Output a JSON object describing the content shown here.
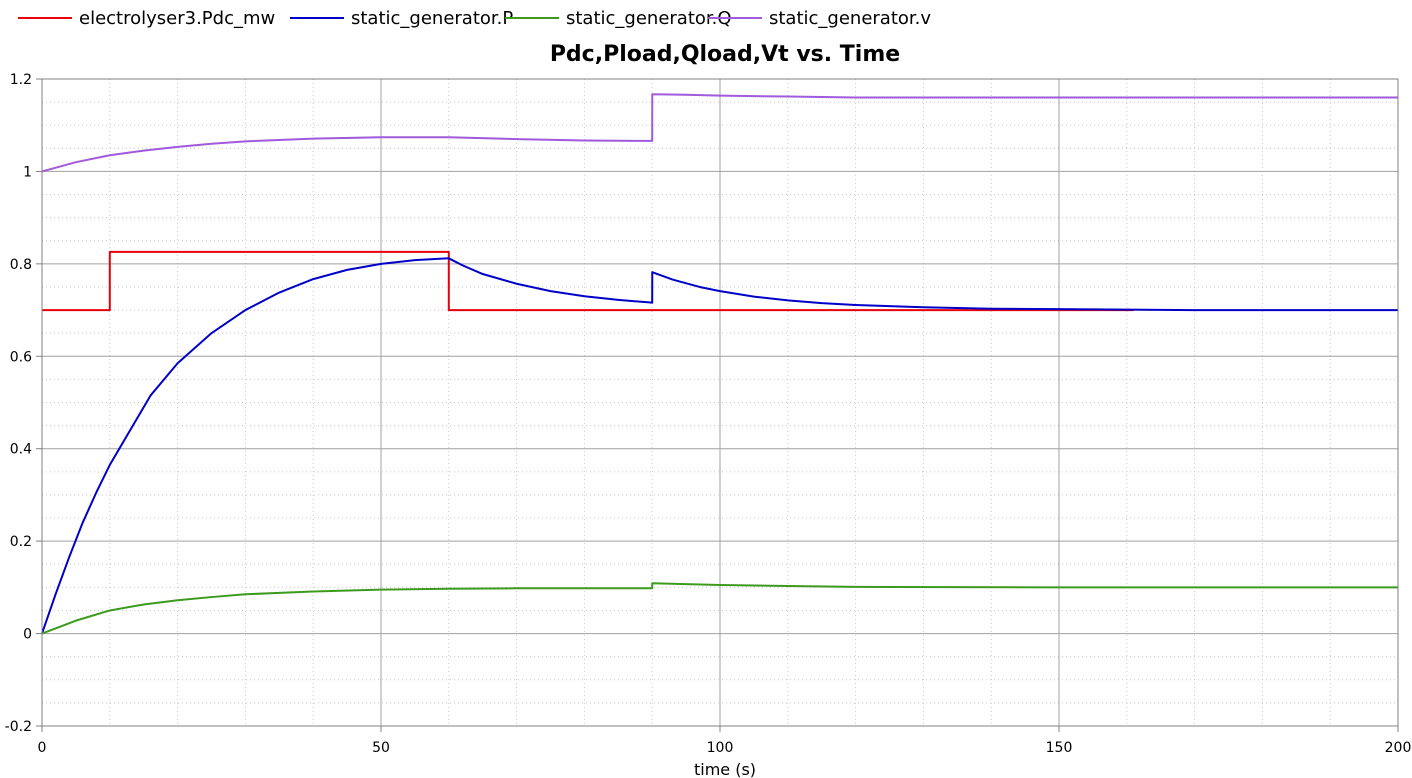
{
  "chart_data": {
    "type": "line",
    "title": "Pdc,Pload,Qload,Vt vs. Time",
    "xlabel": "time (s)",
    "ylabel": "",
    "xlim": [
      0,
      200
    ],
    "ylim": [
      -0.2,
      1.2
    ],
    "x_ticks": [
      "0",
      "50",
      "100",
      "150",
      "200"
    ],
    "y_ticks": [
      "-0.2",
      "0",
      "0.2",
      "0.4",
      "0.6",
      "0.8",
      "1",
      "1.2"
    ],
    "grid": true,
    "legend_position": "top-left",
    "series": [
      {
        "name": "electrolyser3.Pdc_mw",
        "color": "#e8000b",
        "x": [
          0,
          10,
          10,
          60,
          60,
          161
        ],
        "y": [
          0.7,
          0.7,
          0.826,
          0.826,
          0.7,
          0.7
        ]
      },
      {
        "name": "static_generator.P",
        "color": "#0000c8",
        "x": [
          0,
          2,
          4,
          6,
          8,
          10,
          13,
          16,
          20,
          25,
          30,
          35,
          40,
          45,
          50,
          55,
          60,
          62,
          65,
          70,
          75,
          80,
          85,
          90,
          90.01,
          93,
          97,
          100,
          105,
          110,
          115,
          120,
          130,
          140,
          150,
          160,
          170,
          180,
          200
        ],
        "y": [
          0,
          0.085,
          0.165,
          0.24,
          0.305,
          0.365,
          0.44,
          0.515,
          0.585,
          0.65,
          0.7,
          0.738,
          0.767,
          0.787,
          0.8,
          0.808,
          0.812,
          0.797,
          0.778,
          0.757,
          0.741,
          0.73,
          0.722,
          0.716,
          0.782,
          0.766,
          0.75,
          0.741,
          0.729,
          0.721,
          0.715,
          0.711,
          0.706,
          0.703,
          0.702,
          0.701,
          0.7,
          0.7,
          0.7
        ]
      },
      {
        "name": "static_generator.Q",
        "color": "#3c9b1e",
        "x": [
          0,
          5,
          10,
          15,
          20,
          25,
          30,
          35,
          40,
          50,
          60,
          70,
          80,
          90,
          90.01,
          95,
          100,
          110,
          120,
          150,
          200
        ],
        "y": [
          0,
          0.028,
          0.05,
          0.063,
          0.072,
          0.079,
          0.085,
          0.088,
          0.091,
          0.095,
          0.097,
          0.098,
          0.098,
          0.098,
          0.109,
          0.107,
          0.105,
          0.103,
          0.101,
          0.1,
          0.1
        ]
      },
      {
        "name": "static_generator.v",
        "color": "#a05adc",
        "x": [
          0,
          5,
          10,
          15,
          20,
          25,
          30,
          40,
          50,
          60,
          70,
          80,
          90,
          90.01,
          95,
          100,
          110,
          120,
          150,
          200
        ],
        "y": [
          1.0,
          1.02,
          1.035,
          1.045,
          1.053,
          1.06,
          1.065,
          1.071,
          1.074,
          1.074,
          1.07,
          1.067,
          1.066,
          1.167,
          1.166,
          1.164,
          1.162,
          1.16,
          1.16,
          1.16
        ]
      }
    ]
  }
}
